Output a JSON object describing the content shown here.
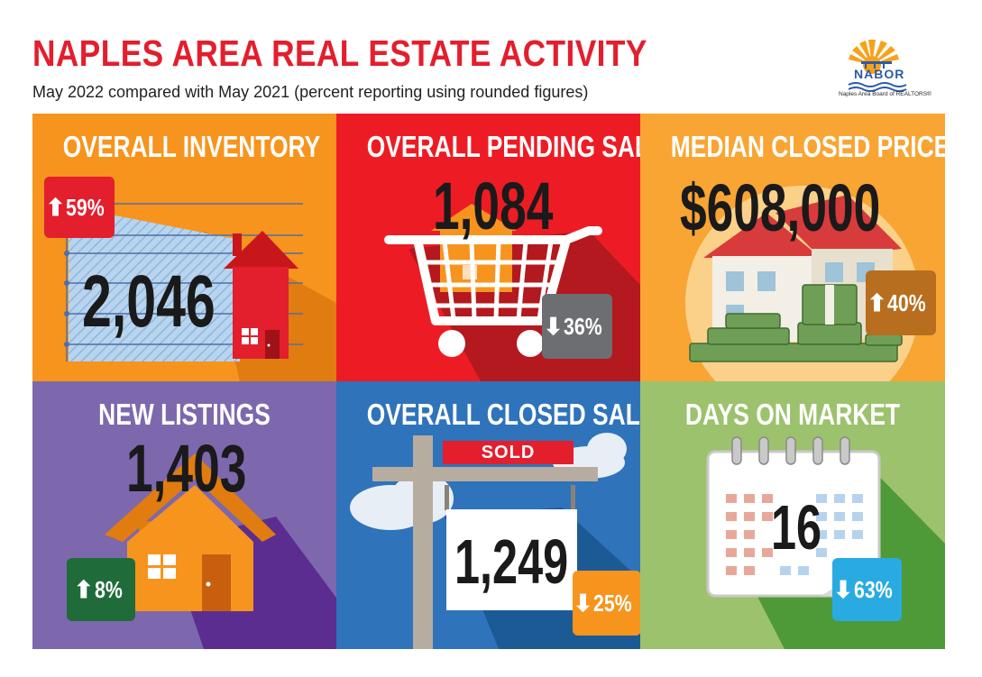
{
  "header": {
    "title": "NAPLES AREA REAL ESTATE ACTIVITY",
    "subtitle": "May 2022 compared with May 2021 (percent reporting using rounded figures)"
  },
  "logo": {
    "name": "NABOR",
    "full_name": "Naples Area Board of REALTORS®",
    "icon": "sun-and-pier-logo"
  },
  "panels": [
    {
      "title": "OVERALL INVENTORY",
      "value": "2,046",
      "arrow": "⬆",
      "change": "59%",
      "direction": "up",
      "bg": "#f7941d",
      "badge_color": "#e31e2d",
      "icon": "house-on-chart"
    },
    {
      "title": "OVERALL PENDING SALES",
      "value": "1,084",
      "arrow": "⬇",
      "change": "36%",
      "direction": "down",
      "bg": "#ed1c24",
      "badge_color": "#6d6e71",
      "icon": "shopping-cart-house"
    },
    {
      "title": "MEDIAN CLOSED PRICE",
      "value": "$608,000",
      "arrow": "⬆",
      "change": "40%",
      "direction": "up",
      "bg": "#f9a533",
      "badge_color": "#b86e1f",
      "icon": "house-with-money"
    },
    {
      "title": "NEW LISTINGS",
      "value": "1,403",
      "arrow": "⬆",
      "change": "8%",
      "direction": "up",
      "bg": "#7d68ae",
      "badge_color": "#1f6b3a",
      "icon": "orange-house"
    },
    {
      "title": "OVERALL CLOSED SALES",
      "value": "1,249",
      "arrow": "⬇",
      "change": "25%",
      "direction": "down",
      "bg": "#2f73ba",
      "badge_color": "#f7941d",
      "icon": "sold-sign",
      "sign_text": "SOLD"
    },
    {
      "title": "DAYS ON MARKET",
      "value": "16",
      "arrow": "⬇",
      "change": "63%",
      "direction": "down",
      "bg": "#9cc26d",
      "badge_color": "#29abe2",
      "icon": "calendar"
    }
  ]
}
